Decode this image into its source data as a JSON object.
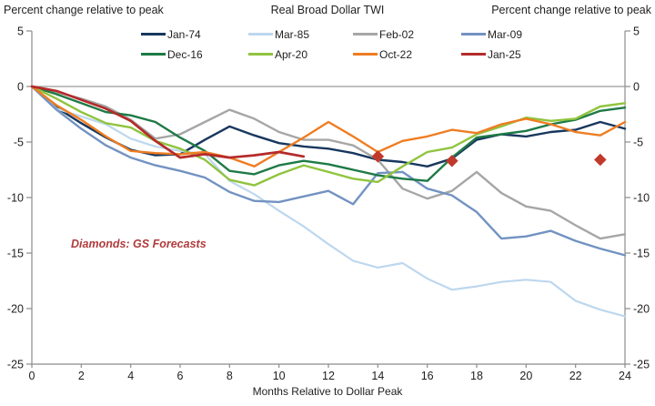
{
  "figure": {
    "left_axis_header": "Percent change relative to peak",
    "right_axis_header": "Percent change relative to peak",
    "title": "Real Broad Dollar TWI",
    "x_axis_label": "Months Relative to Dollar Peak",
    "annotation_text": "Diamonds: GS Forecasts",
    "annotation_color": "#b03b3b",
    "axis_color": "#8c8c8c",
    "zero_line_color": "#9b9b9b"
  },
  "chart_data": {
    "type": "line",
    "title": "Real Broad Dollar TWI",
    "xlabel": "Months Relative to Dollar Peak",
    "ylabel_left": "Percent change relative to peak",
    "ylabel_right": "Percent change relative to peak",
    "xlim": [
      0,
      24
    ],
    "ylim": [
      -25,
      5
    ],
    "x_ticks": [
      0,
      2,
      4,
      6,
      8,
      10,
      12,
      14,
      16,
      18,
      20,
      22,
      24
    ],
    "y_ticks": [
      5,
      0,
      -5,
      -10,
      -15,
      -20,
      -25
    ],
    "grid": "zero-line-only",
    "legend_position": "top-two-rows",
    "x": [
      0,
      1,
      2,
      3,
      4,
      5,
      6,
      7,
      8,
      9,
      10,
      11,
      12,
      13,
      14,
      15,
      16,
      17,
      18,
      19,
      20,
      21,
      22,
      23,
      24
    ],
    "series": [
      {
        "name": "Jan-74",
        "color": "#17375e",
        "width": 2.4,
        "values": [
          0,
          -1.9,
          -3.3,
          -4.6,
          -5.7,
          -6.2,
          -6.1,
          -4.8,
          -3.6,
          -4.4,
          -5.1,
          -5.4,
          -5.6,
          -6.0,
          -6.6,
          -6.8,
          -7.2,
          -6.5,
          -4.8,
          -4.3,
          -4.5,
          -4.1,
          -3.9,
          -3.2,
          -3.8
        ]
      },
      {
        "name": "Mar-85",
        "color": "#bdd7ee",
        "width": 2.2,
        "values": [
          0,
          -2.0,
          -2.7,
          -3.4,
          -4.7,
          -5.4,
          -5.8,
          -6.1,
          -8.5,
          -9.7,
          -11.2,
          -12.6,
          -14.2,
          -15.7,
          -16.3,
          -15.9,
          -17.3,
          -18.3,
          -18.0,
          -17.6,
          -17.4,
          -17.6,
          -19.3,
          -20.1,
          -20.7
        ]
      },
      {
        "name": "Feb-02",
        "color": "#a6a6a6",
        "width": 2.4,
        "values": [
          0,
          -0.5,
          -1.1,
          -1.8,
          -3.0,
          -4.7,
          -4.3,
          -3.2,
          -2.1,
          -2.9,
          -4.1,
          -4.8,
          -4.8,
          -5.3,
          -6.6,
          -9.2,
          -10.1,
          -9.4,
          -7.7,
          -9.6,
          -10.8,
          -11.2,
          -12.5,
          -13.7,
          -13.3
        ]
      },
      {
        "name": "Mar-09",
        "color": "#7292c2",
        "width": 2.4,
        "values": [
          0,
          -2.1,
          -3.8,
          -5.3,
          -6.4,
          -7.1,
          -7.6,
          -8.2,
          -9.5,
          -10.3,
          -10.4,
          -9.9,
          -9.4,
          -10.6,
          -7.8,
          -7.7,
          -9.2,
          -9.8,
          -11.3,
          -13.7,
          -13.5,
          -13.0,
          -13.9,
          -14.6,
          -15.2
        ]
      },
      {
        "name": "Dec-16",
        "color": "#1e7a46",
        "width": 2.4,
        "values": [
          0,
          -0.7,
          -1.5,
          -2.3,
          -2.6,
          -3.2,
          -4.6,
          -5.8,
          -7.6,
          -7.9,
          -7.1,
          -6.7,
          -7.0,
          -7.5,
          -8.0,
          -8.3,
          -8.5,
          -6.4,
          -4.6,
          -4.3,
          -4.0,
          -3.4,
          -3.0,
          -2.2,
          -1.9
        ]
      },
      {
        "name": "Apr-20",
        "color": "#90c43e",
        "width": 2.4,
        "values": [
          0,
          -1.1,
          -2.3,
          -3.3,
          -3.7,
          -4.9,
          -5.6,
          -6.6,
          -8.4,
          -8.9,
          -7.9,
          -7.1,
          -7.7,
          -8.3,
          -8.6,
          -7.2,
          -5.9,
          -5.5,
          -4.3,
          -3.6,
          -2.8,
          -3.1,
          -2.9,
          -1.8,
          -1.5
        ]
      },
      {
        "name": "Oct-22",
        "color": "#ef7d22",
        "width": 2.4,
        "values": [
          0,
          -1.7,
          -3.0,
          -4.5,
          -5.8,
          -6.0,
          -6.1,
          -5.9,
          -6.4,
          -7.2,
          -5.9,
          -4.6,
          -3.2,
          -4.5,
          -5.9,
          -4.9,
          -4.5,
          -3.9,
          -4.2,
          -3.4,
          -2.9,
          -3.4,
          -4.1,
          -4.4,
          -3.2
        ]
      },
      {
        "name": "Jan-25",
        "color": "#b42b2b",
        "width": 2.7,
        "values": [
          0,
          -0.4,
          -1.2,
          -2.0,
          -3.1,
          -4.9,
          -6.4,
          -6.1,
          -6.4,
          -6.2,
          -5.9,
          -6.3
        ]
      }
    ],
    "forecast_diamonds": {
      "series": "Jan-25",
      "color": "#c0392b",
      "points": [
        [
          14,
          -6.3
        ],
        [
          17,
          -6.7
        ],
        [
          23,
          -6.6
        ]
      ]
    },
    "annotation": {
      "text": "Diamonds: GS Forecasts",
      "x_month": 1.6,
      "y_value": -14.3
    }
  }
}
